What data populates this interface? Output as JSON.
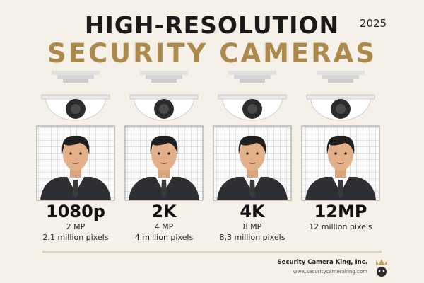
{
  "header": {
    "title": "HIGH-RESOLUTION",
    "subtitle": "SECURITY CAMERAS",
    "year": "2025"
  },
  "panels": [
    {
      "resolution": "1080p",
      "lines": [
        "2 MP",
        "2.1 million pixels"
      ]
    },
    {
      "resolution": "2K",
      "lines": [
        "4 MP",
        "4 million pixels"
      ]
    },
    {
      "resolution": "4K",
      "lines": [
        "8 MP",
        "8,3 million pixels"
      ]
    },
    {
      "resolution": "12MP",
      "lines": [
        "12 million pixels"
      ]
    }
  ],
  "footer": {
    "company": "Security Camera King, Inc.",
    "url": "www.securitycameraking.com"
  }
}
